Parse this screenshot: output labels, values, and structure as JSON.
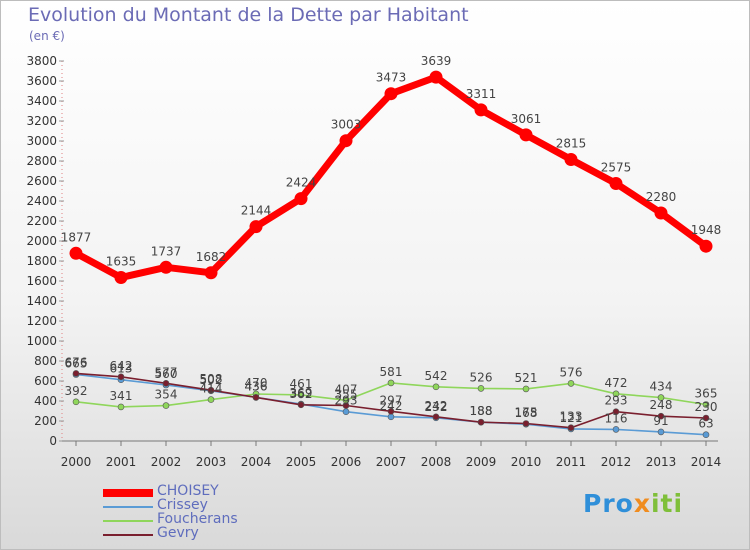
{
  "title": "Evolution du Montant de la Dette par Habitant",
  "subtitle": "(en €)",
  "logo_text": "Proxiti",
  "chart_data": {
    "type": "line",
    "title": "Evolution du Montant de la Dette par Habitant",
    "subtitle": "(en €)",
    "xlabel": "",
    "ylabel": "",
    "x": [
      "2000",
      "2001",
      "2002",
      "2003",
      "2004",
      "2005",
      "2006",
      "2007",
      "2008",
      "2009",
      "2010",
      "2011",
      "2012",
      "2013",
      "2014"
    ],
    "ylim": [
      0,
      3800
    ],
    "yticks": [
      0,
      200,
      400,
      600,
      800,
      1000,
      1200,
      1400,
      1600,
      1800,
      2000,
      2200,
      2400,
      2600,
      2800,
      3000,
      3200,
      3400,
      3600,
      3800
    ],
    "grid": false,
    "legend_position": "bottom-left",
    "series": [
      {
        "name": "CHOISEY",
        "color": "#ff0000",
        "values": [
          1877,
          1635,
          1737,
          1682,
          2144,
          2424,
          3003,
          3473,
          3639,
          3311,
          3061,
          2815,
          2575,
          2280,
          1948
        ],
        "labels": [
          "1877",
          "1635",
          "1737",
          "1682",
          "2144",
          "2424",
          "3003",
          "3473",
          "3639",
          "3311",
          "3061",
          "2815",
          "2575",
          "2280",
          "1948"
        ]
      },
      {
        "name": "Crissey",
        "color": "#5a9bd5",
        "values": [
          665,
          613,
          560,
          502,
          436,
          369,
          293,
          242,
          232,
          188,
          168,
          121,
          116,
          91,
          63
        ],
        "labels": [
          "665",
          "613",
          "560",
          "502",
          "436",
          "369",
          "293",
          "242",
          "232",
          "188",
          "168",
          "121",
          "116",
          "91",
          "63"
        ]
      },
      {
        "name": "Foucherans",
        "color": "#8fd65b",
        "values": [
          392,
          341,
          354,
          414,
          470,
          461,
          407,
          581,
          542,
          526,
          521,
          576,
          472,
          434,
          365
        ],
        "labels": [
          "392",
          "341",
          "354",
          "414",
          "470",
          "461",
          "407",
          "581",
          "542",
          "526",
          "521",
          "576",
          "472",
          "434",
          "365"
        ]
      },
      {
        "name": "Gevry",
        "color": "#7a1f2e",
        "values": [
          676,
          642,
          577,
          508,
          436,
          362,
          355,
          297,
          242,
          188,
          175,
          133,
          293,
          248,
          230
        ],
        "labels": [
          "676",
          "642",
          "577",
          "508",
          "436",
          "362",
          "355",
          "297",
          "242",
          "188",
          "175",
          "133",
          "293",
          "248",
          "230"
        ]
      }
    ]
  }
}
